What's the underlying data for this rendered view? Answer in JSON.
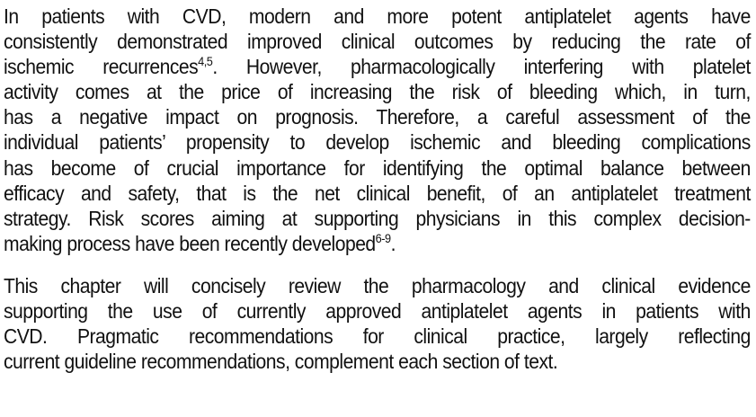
{
  "paragraphs": [
    {
      "lines": [
        {
          "text": "In patients with CVD, modern and more potent antiplatelet agents have"
        },
        {
          "text": "consistently demonstrated improved clinical outcomes by reducing the rate of"
        },
        {
          "pre": "ischemic recurrences",
          "sup": "4,5",
          "post": ". However, pharmacologically interfering with platelet"
        },
        {
          "text": "activity comes at the price of increasing the risk of bleeding which, in turn,"
        },
        {
          "text": "has a negative impact on prognosis. Therefore, a careful assessment of the"
        },
        {
          "text": "individual patients’ propensity to develop ischemic and bleeding complications"
        },
        {
          "text": "has become of crucial importance for identifying the optimal balance between"
        },
        {
          "text": "efficacy and safety, that is the net clinical benefit, of an antiplatelet treatment"
        },
        {
          "text": "strategy. Risk scores aiming at supporting physicians in this complex decision-"
        },
        {
          "pre": "making process have been recently developed",
          "sup": "6-9",
          "post": "."
        }
      ]
    },
    {
      "lines": [
        {
          "text": "This chapter will concisely review the pharmacology and clinical evidence"
        },
        {
          "text": "supporting the use of currently approved antiplatelet agents in patients with"
        },
        {
          "text": "CVD. Pragmatic recommendations for clinical practice, largely reflecting"
        },
        {
          "text": "current guideline recommendations, complement each section of text."
        }
      ]
    }
  ]
}
